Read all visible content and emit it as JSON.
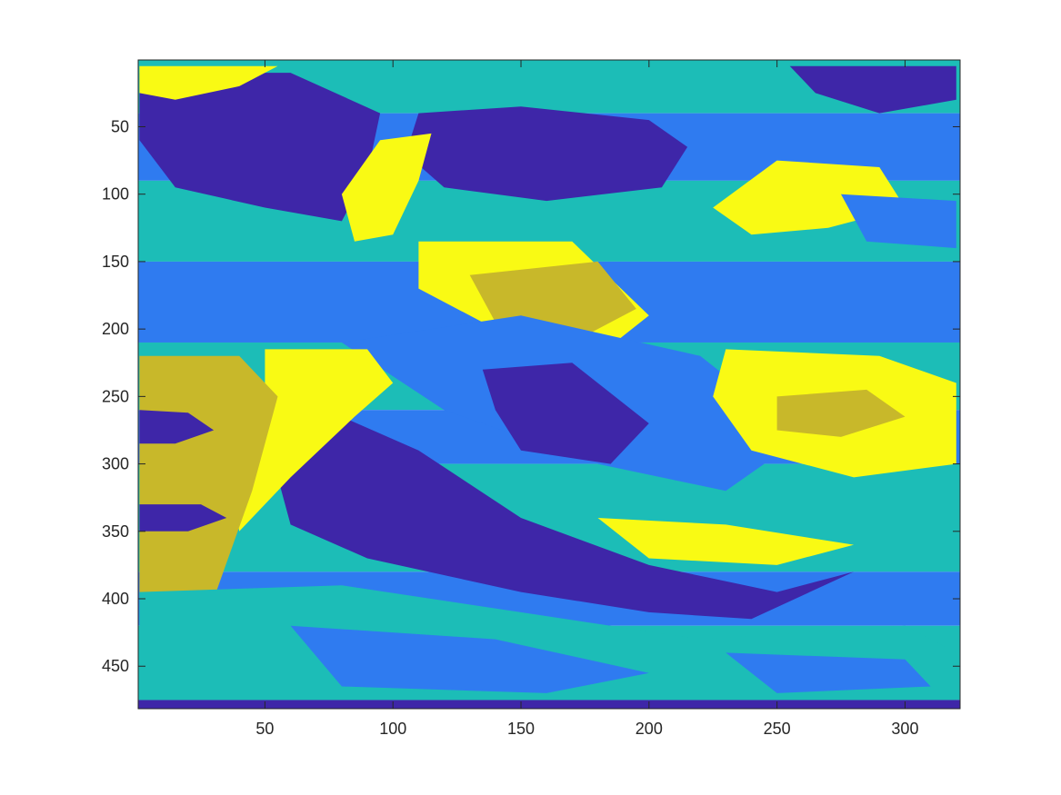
{
  "chart_data": {
    "type": "heatmap",
    "title": "",
    "xlabel": "",
    "ylabel": "",
    "xlim": [
      0.5,
      321.5
    ],
    "ylim": [
      0.5,
      481.5
    ],
    "y_direction": "reverse",
    "x_ticks": [
      50,
      100,
      150,
      200,
      250,
      300
    ],
    "x_tick_labels": [
      "50",
      "100",
      "150",
      "200",
      "250",
      "300"
    ],
    "y_ticks": [
      50,
      100,
      150,
      200,
      250,
      300,
      350,
      400,
      450
    ],
    "y_tick_labels": [
      "50",
      "100",
      "150",
      "200",
      "250",
      "300",
      "350",
      "400",
      "450"
    ],
    "image_size": {
      "columns": 321,
      "rows": 481
    },
    "num_classes": 5,
    "class_colors": [
      "#3E26A8",
      "#2F7BF0",
      "#1CBDB7",
      "#C8B82A",
      "#F9FA14"
    ],
    "colormap": "parula",
    "grid": false,
    "legend": "none"
  }
}
